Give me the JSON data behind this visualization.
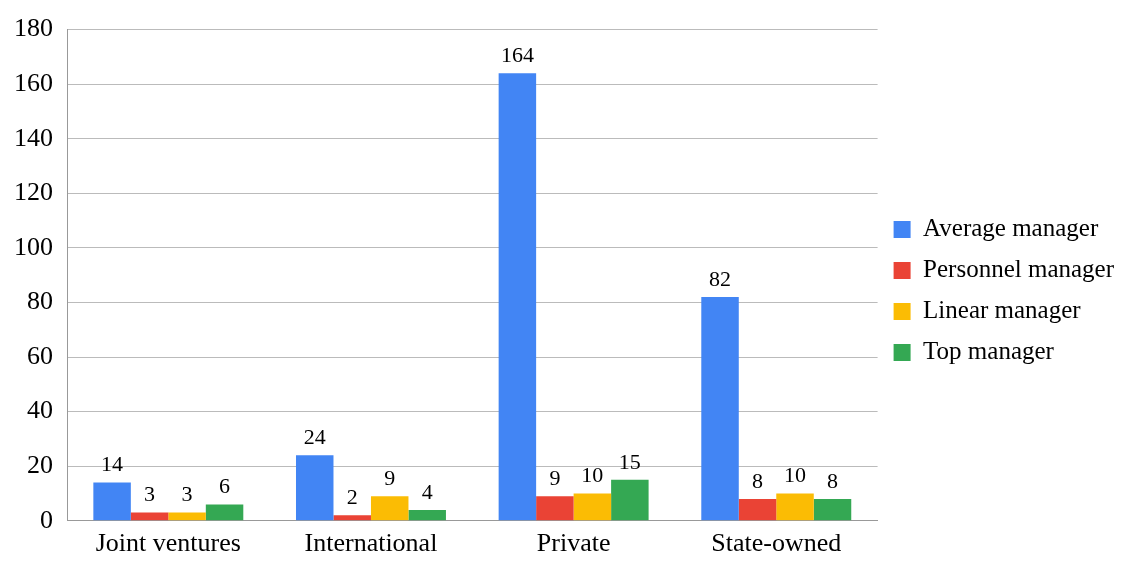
{
  "chart_data": {
    "type": "bar",
    "categories": [
      "Joint ventures",
      "International",
      "Private",
      "State-owned"
    ],
    "series": [
      {
        "name": "Average manager",
        "color": "#4285f4",
        "values": [
          14,
          24,
          164,
          82
        ]
      },
      {
        "name": "Personnel manager",
        "color": "#ea4335",
        "values": [
          3,
          2,
          9,
          8
        ]
      },
      {
        "name": "Linear manager",
        "color": "#fbbc04",
        "values": [
          3,
          9,
          10,
          10
        ]
      },
      {
        "name": "Top manager",
        "color": "#34a853",
        "values": [
          6,
          4,
          15,
          8
        ]
      }
    ],
    "ylim": [
      0,
      180
    ],
    "yticks": [
      0,
      20,
      40,
      60,
      80,
      100,
      120,
      140,
      160,
      180
    ],
    "grid": "y",
    "legend": "right",
    "data_labels": true
  }
}
